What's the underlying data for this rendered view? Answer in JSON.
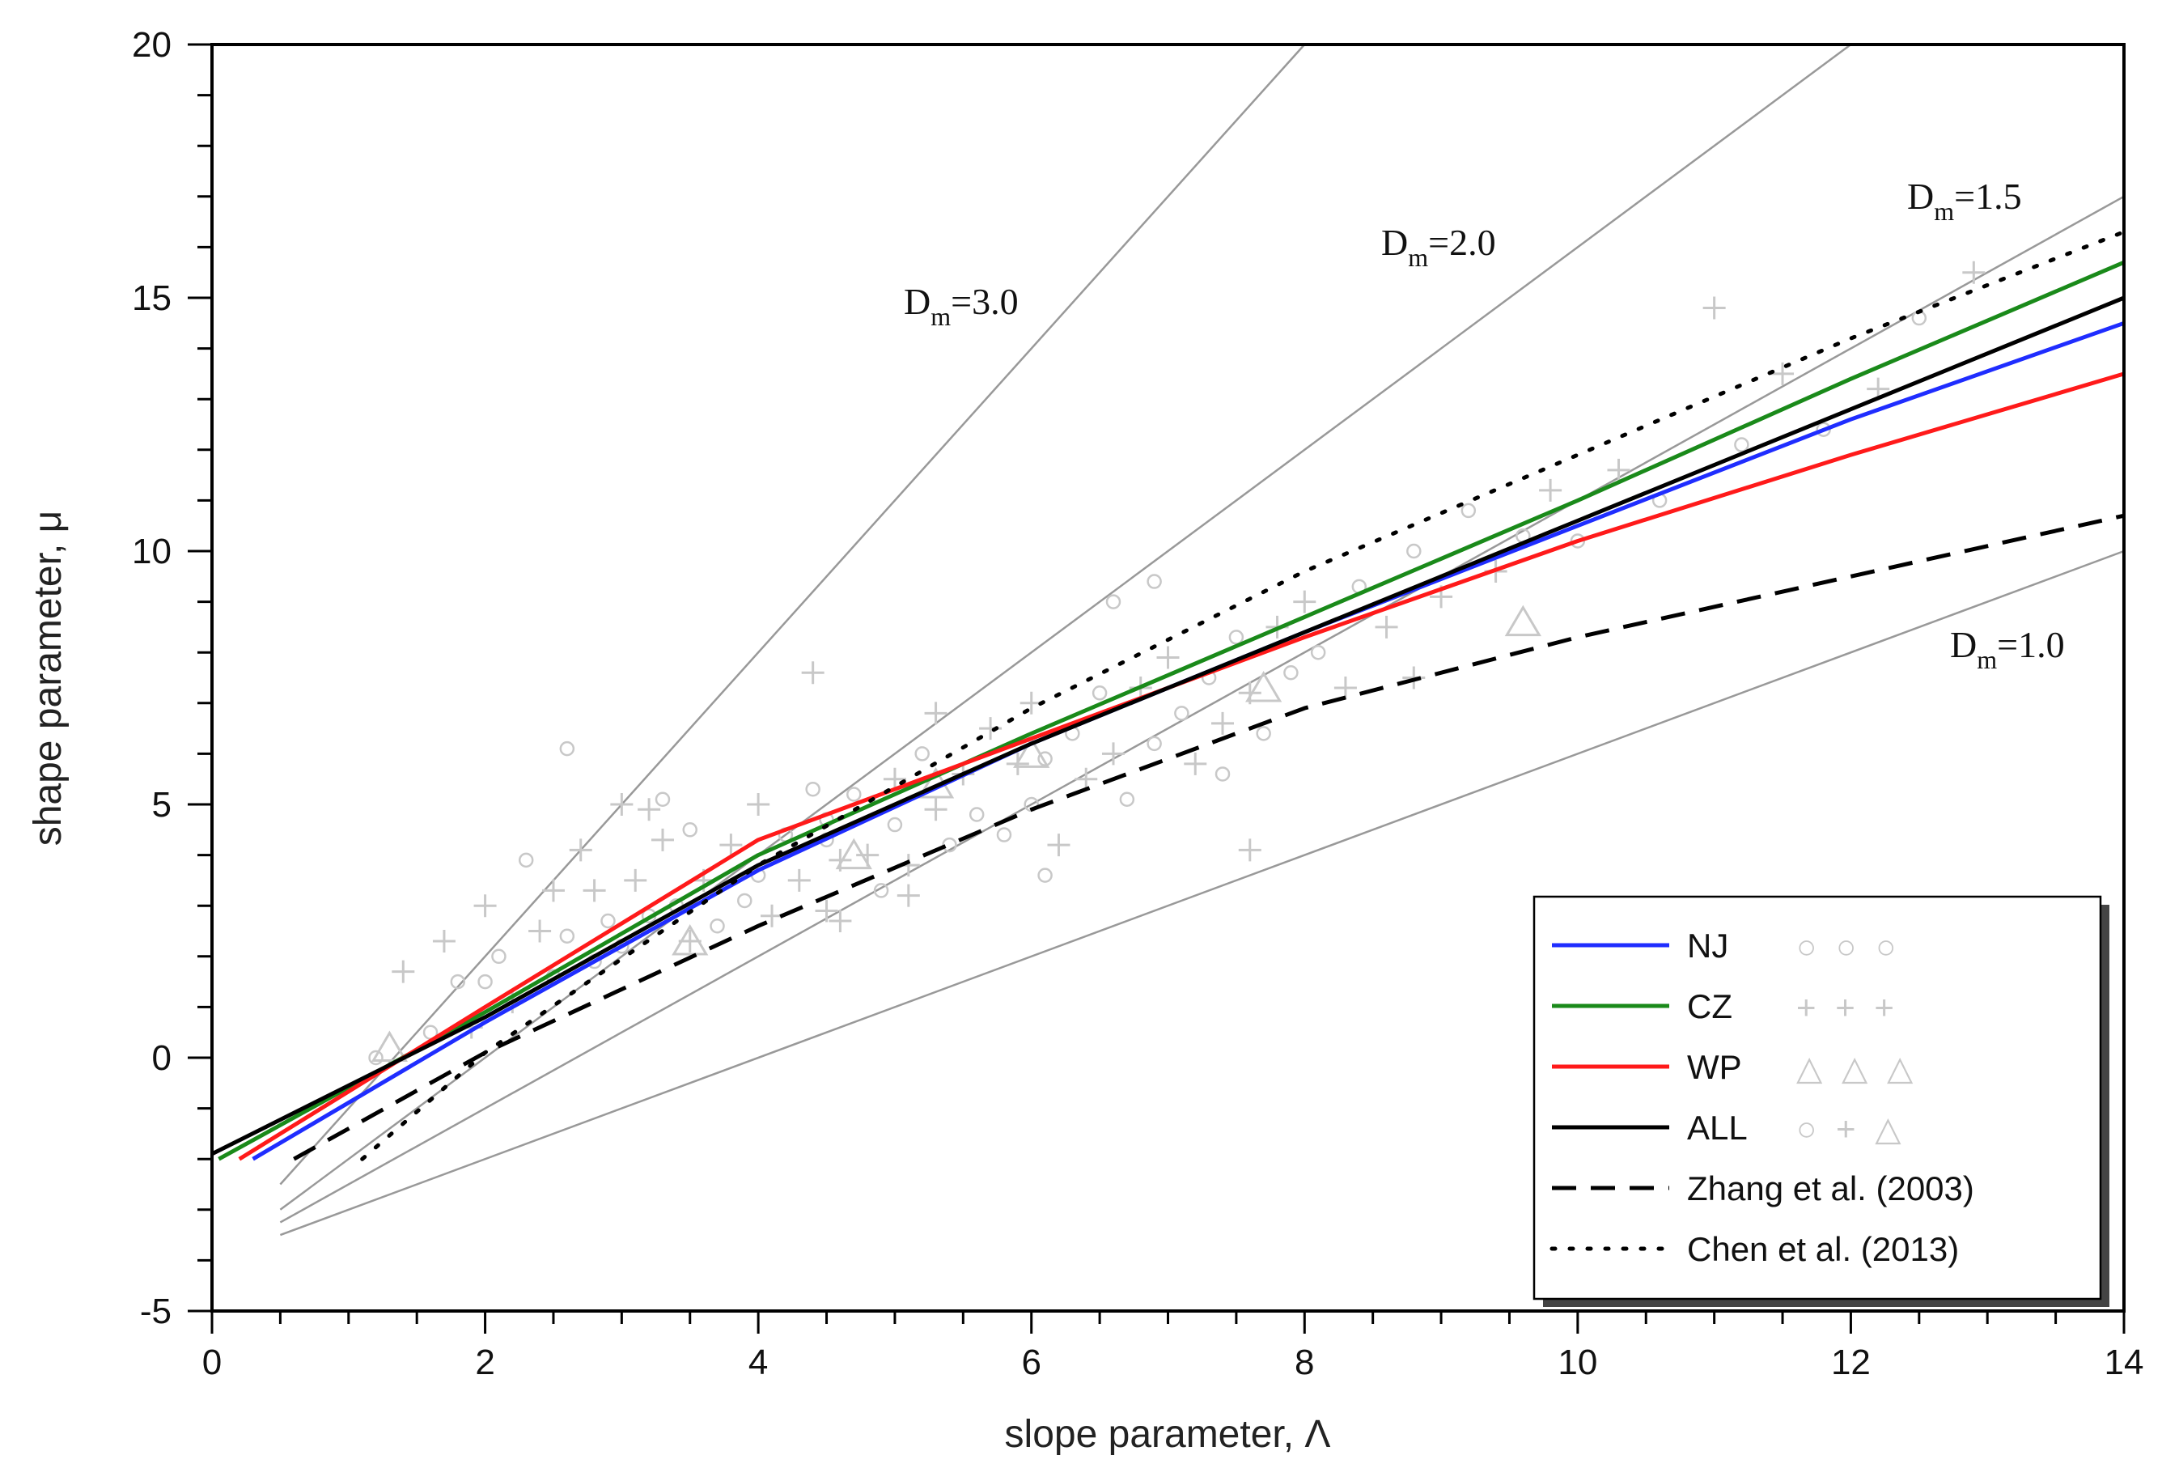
{
  "chart_data": {
    "type": "line",
    "xlabel": "slope parameter, Λ",
    "ylabel": "shape parameter, μ",
    "xlim": [
      0,
      14
    ],
    "ylim": [
      -5,
      20
    ],
    "x_ticks": [
      0,
      2,
      4,
      6,
      8,
      10,
      12,
      14
    ],
    "y_ticks": [
      -5,
      0,
      5,
      10,
      15,
      20
    ],
    "colors": {
      "NJ": "#1f2dff",
      "CZ": "#1a8a1a",
      "WP": "#ff1a1a",
      "ALL": "#000000",
      "points": "#c8c8c8",
      "dm": "#999999"
    },
    "dm_lines": [
      {
        "name": "dm-3.0",
        "base": "D",
        "sub": "m",
        "value": "=3.0",
        "points": [
          [
            0.5,
            -2.5
          ],
          [
            8.0,
            20.0
          ]
        ]
      },
      {
        "name": "dm-2.0",
        "base": "D",
        "sub": "m",
        "value": "=2.0",
        "points": [
          [
            0.5,
            -3.0
          ],
          [
            12.0,
            20.0
          ]
        ]
      },
      {
        "name": "dm-1.5",
        "base": "D",
        "sub": "m",
        "value": "=1.5",
        "points": [
          [
            0.5,
            -3.25
          ],
          [
            14.0,
            17.0
          ]
        ]
      },
      {
        "name": "dm-1.0",
        "base": "D",
        "sub": "m",
        "value": "=1.0",
        "points": [
          [
            0.5,
            -3.5
          ],
          [
            14.0,
            10.0
          ]
        ]
      }
    ],
    "series": [
      {
        "name": "NJ",
        "style": "solid",
        "points": [
          [
            0.3,
            -2.0
          ],
          [
            2,
            0.7
          ],
          [
            4,
            3.7
          ],
          [
            6,
            6.2
          ],
          [
            8,
            8.4
          ],
          [
            10,
            10.5
          ],
          [
            12,
            12.6
          ],
          [
            14,
            14.5
          ]
        ]
      },
      {
        "name": "CZ",
        "style": "solid",
        "points": [
          [
            0.05,
            -2.0
          ],
          [
            2,
            0.9
          ],
          [
            4,
            4.0
          ],
          [
            6,
            6.4
          ],
          [
            8,
            8.7
          ],
          [
            10,
            11.0
          ],
          [
            12,
            13.4
          ],
          [
            14,
            15.7
          ]
        ]
      },
      {
        "name": "WP",
        "style": "solid",
        "points": [
          [
            0.2,
            -2.0
          ],
          [
            2,
            1.0
          ],
          [
            4,
            4.3
          ],
          [
            6,
            6.3
          ],
          [
            8,
            8.3
          ],
          [
            10,
            10.2
          ],
          [
            12,
            11.9
          ],
          [
            14,
            13.5
          ]
        ]
      },
      {
        "name": "ALL",
        "style": "solid",
        "points": [
          [
            0.0,
            -1.9
          ],
          [
            2,
            0.8
          ],
          [
            4,
            3.8
          ],
          [
            6,
            6.2
          ],
          [
            8,
            8.4
          ],
          [
            10,
            10.6
          ],
          [
            12,
            12.8
          ],
          [
            14,
            15.0
          ]
        ]
      },
      {
        "name": "Zhang et al. (2003)",
        "style": "dashed",
        "points": [
          [
            0.6,
            -2.0
          ],
          [
            2,
            0.1
          ],
          [
            4,
            2.6
          ],
          [
            6,
            4.9
          ],
          [
            8,
            6.9
          ],
          [
            10,
            8.3
          ],
          [
            12,
            9.5
          ],
          [
            14,
            10.7
          ]
        ]
      },
      {
        "name": "Chen et al. (2013)",
        "style": "dotted",
        "points": [
          [
            1.1,
            -2.0
          ],
          [
            2,
            0.1
          ],
          [
            4,
            3.8
          ],
          [
            6,
            6.9
          ],
          [
            8,
            9.6
          ],
          [
            10,
            11.9
          ],
          [
            12,
            14.2
          ],
          [
            14,
            16.3
          ]
        ]
      }
    ],
    "scatter": [
      [
        1.2,
        0.0
      ],
      [
        1.4,
        1.7
      ],
      [
        1.6,
        0.5
      ],
      [
        1.7,
        2.3
      ],
      [
        1.8,
        1.5
      ],
      [
        1.9,
        0.6
      ],
      [
        2.0,
        1.5
      ],
      [
        2.0,
        3.0
      ],
      [
        2.1,
        2.0
      ],
      [
        2.2,
        1.1
      ],
      [
        2.3,
        3.9
      ],
      [
        2.4,
        2.5
      ],
      [
        2.5,
        1.6
      ],
      [
        2.5,
        3.3
      ],
      [
        2.6,
        2.4
      ],
      [
        2.7,
        4.1
      ],
      [
        2.8,
        1.9
      ],
      [
        2.8,
        3.3
      ],
      [
        2.9,
        2.7
      ],
      [
        3.0,
        5.0
      ],
      [
        3.0,
        2.2
      ],
      [
        3.1,
        3.5
      ],
      [
        3.2,
        2.8
      ],
      [
        3.3,
        4.3
      ],
      [
        3.4,
        3.0
      ],
      [
        3.5,
        2.3
      ],
      [
        3.5,
        4.5
      ],
      [
        3.6,
        3.5
      ],
      [
        3.7,
        2.6
      ],
      [
        3.8,
        4.2
      ],
      [
        3.9,
        3.1
      ],
      [
        4.0,
        5.0
      ],
      [
        4.0,
        3.6
      ],
      [
        4.1,
        2.8
      ],
      [
        4.2,
        4.4
      ],
      [
        4.3,
        3.5
      ],
      [
        4.4,
        5.3
      ],
      [
        4.5,
        2.9
      ],
      [
        4.5,
        4.3
      ],
      [
        4.6,
        3.9
      ],
      [
        4.7,
        5.2
      ],
      [
        4.8,
        4.0
      ],
      [
        4.9,
        3.3
      ],
      [
        5.0,
        5.5
      ],
      [
        5.0,
        4.6
      ],
      [
        5.1,
        3.8
      ],
      [
        5.2,
        6.0
      ],
      [
        5.3,
        4.9
      ],
      [
        5.4,
        4.2
      ],
      [
        5.5,
        5.6
      ],
      [
        5.6,
        4.8
      ],
      [
        5.7,
        6.5
      ],
      [
        5.8,
        4.4
      ],
      [
        5.9,
        5.8
      ],
      [
        6.0,
        5.0
      ],
      [
        6.0,
        7.0
      ],
      [
        6.1,
        5.9
      ],
      [
        6.2,
        4.2
      ],
      [
        6.3,
        6.4
      ],
      [
        6.4,
        5.5
      ],
      [
        6.5,
        7.2
      ],
      [
        6.6,
        6.0
      ],
      [
        6.7,
        5.1
      ],
      [
        6.8,
        7.3
      ],
      [
        6.9,
        6.2
      ],
      [
        7.0,
        7.9
      ],
      [
        7.1,
        6.8
      ],
      [
        7.2,
        5.8
      ],
      [
        7.3,
        7.5
      ],
      [
        7.4,
        6.6
      ],
      [
        7.5,
        8.3
      ],
      [
        7.6,
        7.2
      ],
      [
        7.7,
        6.4
      ],
      [
        7.8,
        8.5
      ],
      [
        7.9,
        7.6
      ],
      [
        8.0,
        9.0
      ],
      [
        8.1,
        8.0
      ],
      [
        8.3,
        7.3
      ],
      [
        8.4,
        9.3
      ],
      [
        8.6,
        8.5
      ],
      [
        8.8,
        10.0
      ],
      [
        9.0,
        9.1
      ],
      [
        9.2,
        10.8
      ],
      [
        9.4,
        9.6
      ],
      [
        9.6,
        10.3
      ],
      [
        9.8,
        11.2
      ],
      [
        10.0,
        10.2
      ],
      [
        10.3,
        11.6
      ],
      [
        10.6,
        11.0
      ],
      [
        11.0,
        14.8
      ],
      [
        11.2,
        12.1
      ],
      [
        11.5,
        13.5
      ],
      [
        11.8,
        12.4
      ],
      [
        12.2,
        13.2
      ],
      [
        12.5,
        14.6
      ],
      [
        12.9,
        15.5
      ],
      [
        3.3,
        5.1
      ],
      [
        4.6,
        2.7
      ],
      [
        2.6,
        6.1
      ],
      [
        4.4,
        7.6
      ],
      [
        6.6,
        9.0
      ],
      [
        7.6,
        4.1
      ],
      [
        6.1,
        3.6
      ],
      [
        5.1,
        3.2
      ],
      [
        6.9,
        9.4
      ],
      [
        3.2,
        4.9
      ],
      [
        4.5,
        4.7
      ],
      [
        5.3,
        6.8
      ],
      [
        7.4,
        5.6
      ],
      [
        8.8,
        7.5
      ]
    ],
    "wp_triangles": [
      [
        1.3,
        0.2
      ],
      [
        3.5,
        2.3
      ],
      [
        4.7,
        4.0
      ],
      [
        5.3,
        5.4
      ],
      [
        6.0,
        6.0
      ],
      [
        7.7,
        7.3
      ],
      [
        9.6,
        8.6
      ]
    ],
    "legend": [
      {
        "label": "NJ",
        "symbols": "○ ○ ○"
      },
      {
        "label": "CZ",
        "symbols": "+ + +"
      },
      {
        "label": "WP",
        "symbols": "△ △ △"
      },
      {
        "label": "ALL",
        "symbols": "○ + △"
      },
      {
        "label": "Zhang et al. (2003)",
        "symbols": ""
      },
      {
        "label": "Chen et al. (2013)",
        "symbols": ""
      }
    ]
  }
}
